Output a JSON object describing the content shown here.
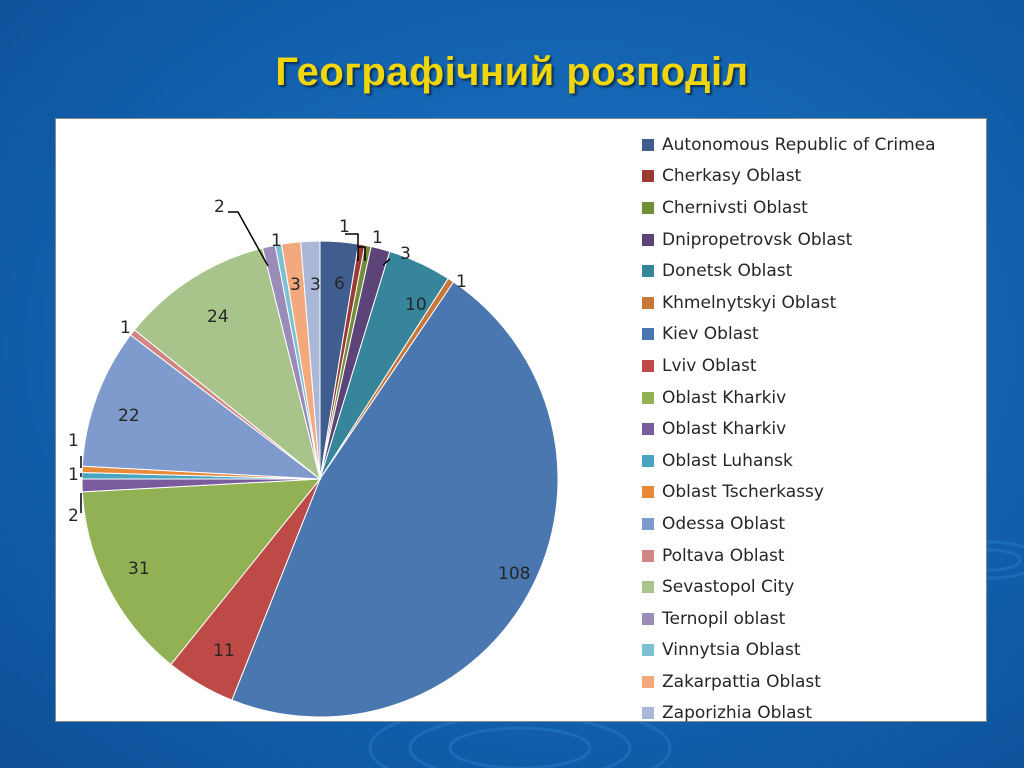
{
  "slide": {
    "title": "Географічний розподіл"
  },
  "chart_data": {
    "type": "pie",
    "title": "",
    "categories": [
      "Autonomous Republic of Crimea",
      "Cherkasy Oblast",
      "Chernivsti Oblast",
      "Dnipropetrovsk Oblast",
      "Donetsk Oblast",
      "Khmelnytskyi Oblast",
      "Kiev Oblast",
      "Lviv Oblast",
      "Oblast Kharkiv",
      "Oblast Kharkiv",
      "Oblast Luhansk",
      "Oblast Tscherkassy",
      "Odessa Oblast",
      "Poltava Oblast",
      "Sevastopol City",
      "Ternopil oblast",
      "Vinnytsia Oblast",
      "Zakarpattia Oblast",
      "Zaporizhia Oblast"
    ],
    "values": [
      6,
      1,
      1,
      3,
      10,
      1,
      108,
      11,
      31,
      2,
      1,
      1,
      22,
      1,
      24,
      2,
      1,
      3,
      3
    ],
    "colors": [
      "#3f5e8f",
      "#9b3b36",
      "#728e3b",
      "#5d4478",
      "#36859a",
      "#c8763a",
      "#4a77b0",
      "#bd4a47",
      "#92b154",
      "#7a5c9c",
      "#4aa6c0",
      "#e88a3a",
      "#7f9acc",
      "#d08784",
      "#a9c48a",
      "#9a8bb8",
      "#7dbfd3",
      "#f4a97c",
      "#aab7d9"
    ],
    "legend_position": "right",
    "start_angle_deg": 0,
    "direction": "clockwise"
  }
}
